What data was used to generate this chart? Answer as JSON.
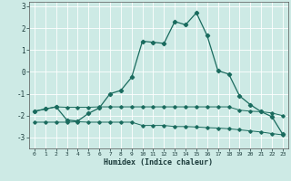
{
  "xlabel": "Humidex (Indice chaleur)",
  "background_color": "#cdeae5",
  "grid_color": "#ffffff",
  "line_color": "#1a6b5e",
  "xlim": [
    -0.5,
    23.5
  ],
  "ylim": [
    -3.5,
    3.2
  ],
  "yticks": [
    -3,
    -2,
    -1,
    0,
    1,
    2,
    3
  ],
  "xticks": [
    0,
    1,
    2,
    3,
    4,
    5,
    6,
    7,
    8,
    9,
    10,
    11,
    12,
    13,
    14,
    15,
    16,
    17,
    18,
    19,
    20,
    21,
    22,
    23
  ],
  "line1_x": [
    0,
    1,
    2,
    3,
    4,
    5,
    6,
    7,
    8,
    9,
    10,
    11,
    12,
    13,
    14,
    15,
    16,
    17,
    18,
    19,
    20,
    21,
    22,
    23
  ],
  "line1_y": [
    -1.8,
    -1.7,
    -1.6,
    -1.62,
    -1.62,
    -1.62,
    -1.6,
    -1.6,
    -1.6,
    -1.6,
    -1.6,
    -1.6,
    -1.6,
    -1.6,
    -1.6,
    -1.6,
    -1.6,
    -1.6,
    -1.6,
    -1.75,
    -1.8,
    -1.82,
    -1.88,
    -2.0
  ],
  "line2_x": [
    0,
    1,
    2,
    3,
    4,
    5,
    6,
    7,
    8,
    9,
    10,
    11,
    12,
    13,
    14,
    15,
    16,
    17,
    18,
    19,
    20,
    21,
    22,
    23
  ],
  "line2_y": [
    -2.3,
    -2.3,
    -2.3,
    -2.3,
    -2.28,
    -2.3,
    -2.3,
    -2.3,
    -2.3,
    -2.3,
    -2.45,
    -2.45,
    -2.45,
    -2.5,
    -2.5,
    -2.52,
    -2.55,
    -2.57,
    -2.6,
    -2.65,
    -2.7,
    -2.75,
    -2.82,
    -2.88
  ],
  "line3_x": [
    0,
    1,
    2,
    3,
    4,
    5,
    6,
    7,
    8,
    9,
    10,
    11,
    12,
    13,
    14,
    15,
    16,
    17,
    18,
    19,
    20,
    21,
    22,
    23
  ],
  "line3_y": [
    -1.8,
    -1.7,
    -1.6,
    -2.2,
    -2.25,
    -1.9,
    -1.65,
    -1.0,
    -0.85,
    -0.25,
    1.4,
    1.35,
    1.3,
    2.3,
    2.15,
    2.7,
    1.65,
    0.05,
    -0.1,
    -1.1,
    -1.5,
    -1.82,
    -2.05,
    -2.85
  ]
}
